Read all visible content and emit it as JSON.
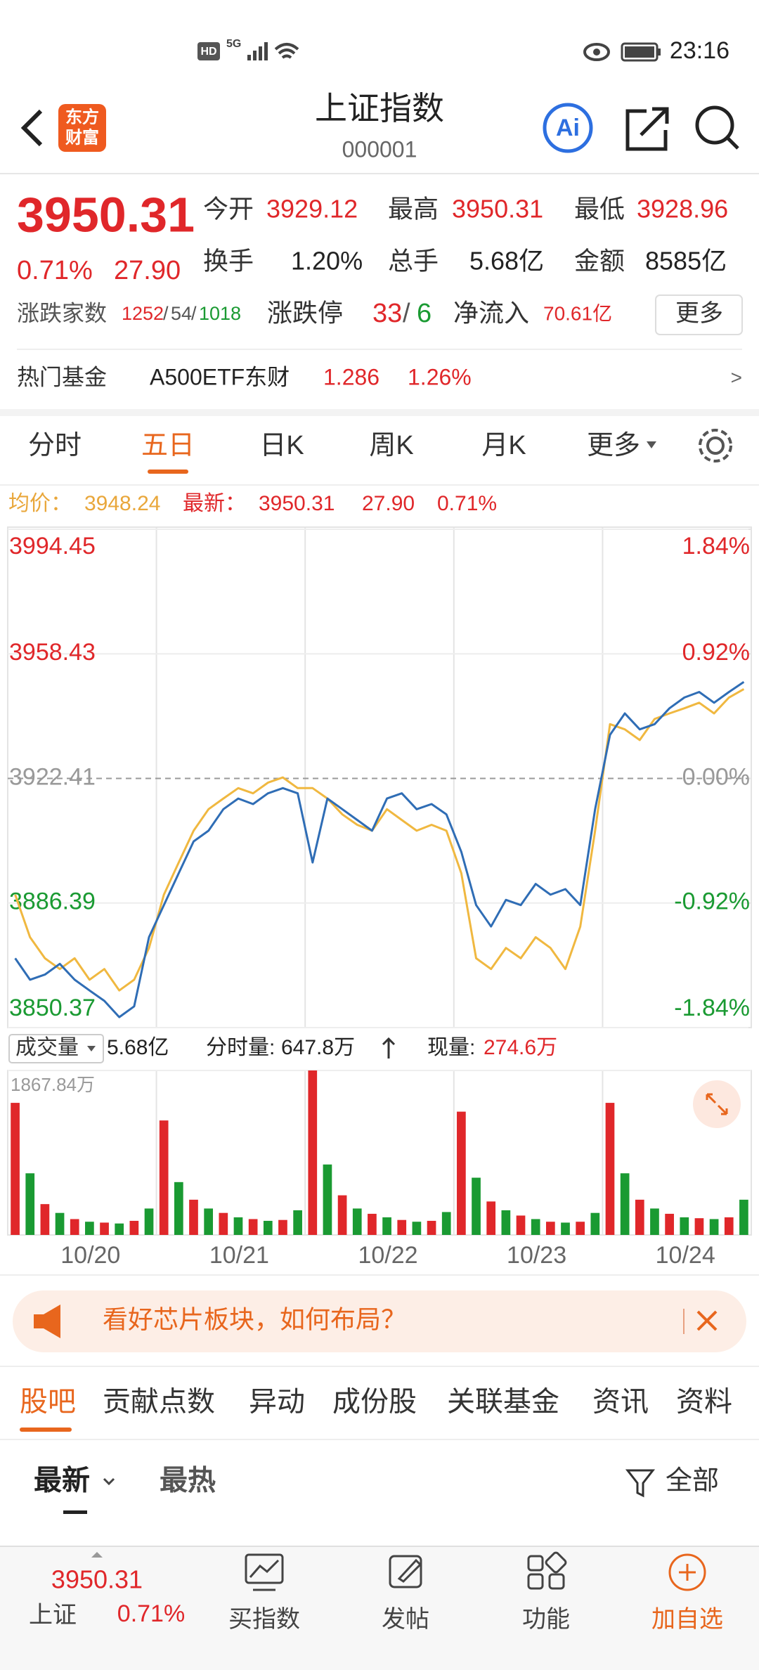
{
  "status_bar": {
    "hd": "HD",
    "network": "5G",
    "time": "23:16"
  },
  "header": {
    "logo": [
      "东方",
      "财富"
    ],
    "title": "上证指数",
    "code": "000001",
    "ai": "Ai"
  },
  "quote": {
    "price": "3950.31",
    "change_pct": "0.71%",
    "change": "27.90",
    "fields": [
      {
        "label": "今开",
        "value": "3929.12",
        "color": "#e0272a"
      },
      {
        "label": "最高",
        "value": "3950.31",
        "color": "#e0272a"
      },
      {
        "label": "最低",
        "value": "3928.96",
        "color": "#e0272a"
      },
      {
        "label": "换手",
        "value": "1.20%",
        "color": "#222222"
      },
      {
        "label": "总手",
        "value": "5.68亿",
        "color": "#222222"
      },
      {
        "label": "金额",
        "value": "8585亿",
        "color": "#222222"
      }
    ],
    "breadth_label": "涨跌家数",
    "up": "1252",
    "flat": "54",
    "down": "1018",
    "separator": "/",
    "limit_label": "涨跌停",
    "limit_up": "33",
    "limit_down": "6",
    "netflow_label": "净流入",
    "netflow": "70.61亿",
    "more": "更多"
  },
  "hot_fund": {
    "label": "热门基金",
    "name": "A500ETF东财",
    "price": "1.286",
    "change": "1.26%",
    "arrow": ">"
  },
  "chart_tabs": {
    "items": [
      "分时",
      "五日",
      "日K",
      "周K",
      "月K",
      "更多"
    ],
    "active": 1
  },
  "legend": {
    "avg_label": "均价：",
    "avg": "3948.24",
    "last_label": "最新：",
    "last": "3950.31",
    "change": "27.90",
    "pct": "0.71%"
  },
  "chart_data": [
    {
      "type": "line",
      "ylim": [
        3850.37,
        3994.45
      ],
      "yticks": [
        3994.45,
        3958.43,
        3922.41,
        3886.39,
        3850.37
      ],
      "baseline_tick": 2,
      "y2lim": [
        -1.84,
        1.84
      ],
      "y2ticks": [
        {
          "value": 1.84,
          "label": "1.84%"
        },
        {
          "value": 0.92,
          "label": "0.92%"
        },
        {
          "value": 0,
          "label": "0.00%"
        },
        {
          "value": -0.92,
          "label": "-0.92%"
        },
        {
          "value": -1.84,
          "label": "-1.84%"
        }
      ],
      "days": 5,
      "series": [
        {
          "color": "#2f6db5",
          "values": [
            3870.4,
            3864.2,
            3865.7,
            3868.8,
            3864.2,
            3861.1,
            3858.1,
            3853.4,
            3856.5,
            3876.5,
            3885.8,
            3895.0,
            3904.2,
            3907.3,
            3913.5,
            3916.6,
            3915.0,
            3918.1,
            3919.6,
            3918.1,
            3898.1,
            3916.6,
            3913.5,
            3910.4,
            3907.3,
            3916.6,
            3918.1,
            3913.5,
            3915.0,
            3912.0,
            3901.2,
            3885.8,
            3879.6,
            3887.3,
            3885.8,
            3891.9,
            3888.8,
            3890.4,
            3885.8,
            3913.5,
            3935.0,
            3941.2,
            3936.6,
            3938.1,
            3942.7,
            3945.8,
            3947.4,
            3944.3,
            3947.4,
            3950.31
          ]
        },
        {
          "color": "#f0b840",
          "values": [
            3888.8,
            3876.5,
            3870.4,
            3867.3,
            3870.4,
            3864.2,
            3867.3,
            3861.1,
            3864.2,
            3873.4,
            3888.8,
            3898.1,
            3907.3,
            3913.5,
            3916.6,
            3919.6,
            3918.1,
            3921.2,
            3922.7,
            3919.6,
            3919.6,
            3916.6,
            3912.0,
            3909.0,
            3907.3,
            3913.5,
            3910.4,
            3907.3,
            3909.0,
            3907.3,
            3895.0,
            3870.4,
            3867.3,
            3873.4,
            3870.4,
            3876.5,
            3873.4,
            3867.3,
            3879.6,
            3907.3,
            3938.1,
            3936.6,
            3933.5,
            3939.6,
            3941.2,
            3942.7,
            3944.3,
            3941.2,
            3945.8,
            3948.24
          ]
        }
      ]
    },
    {
      "type": "bar",
      "ylim": [
        0,
        1867.84
      ],
      "yticks": [
        {
          "value": 1867.84,
          "label": "1867.84万"
        }
      ],
      "colors": [
        "#e0272a",
        "#1a9a32"
      ],
      "day_labels": [
        "10/20",
        "10/21",
        "10/22",
        "10/23",
        "10/24"
      ],
      "values": [
        1500,
        700,
        350,
        250,
        180,
        150,
        140,
        130,
        160,
        300,
        1300,
        600,
        400,
        300,
        250,
        200,
        180,
        160,
        170,
        280,
        1867.84,
        800,
        450,
        300,
        240,
        200,
        170,
        150,
        160,
        260,
        1400,
        650,
        380,
        280,
        220,
        180,
        150,
        140,
        150,
        250,
        1500,
        700,
        400,
        300,
        240,
        200,
        190,
        180,
        200,
        400
      ]
    }
  ],
  "volume_bar": {
    "selector": "成交量",
    "total": "5.68亿",
    "tick_label": "分时量:",
    "tick_vol": "647.8万",
    "now_label": "现量:",
    "now_vol": "274.6万"
  },
  "banner": {
    "text": "看好芯片板块，如何布局？"
  },
  "tabs": {
    "items": [
      "股吧",
      "贡献点数",
      "异动",
      "成份股",
      "关联基金",
      "资讯",
      "资料"
    ],
    "active": 0
  },
  "sort": {
    "options": [
      "最新",
      "最热"
    ],
    "filter": "全部"
  },
  "bottom_bar": {
    "index_price": "3950.31",
    "index_name": "上证",
    "index_pct": "0.71%",
    "items": [
      "买指数",
      "发帖",
      "功能",
      "加自选"
    ]
  }
}
